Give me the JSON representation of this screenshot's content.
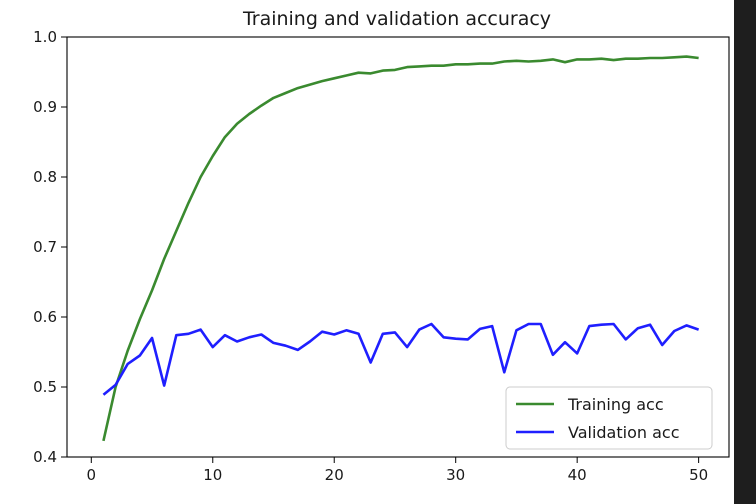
{
  "chart_data": {
    "type": "line",
    "title": "Training and validation accuracy",
    "xlabel": "",
    "ylabel": "",
    "xlim": [
      -2,
      52.5
    ],
    "ylim": [
      0.4,
      1.0
    ],
    "xticks": [
      0,
      10,
      20,
      30,
      40,
      50
    ],
    "yticks": [
      0.4,
      0.5,
      0.6,
      0.7,
      0.8,
      0.9,
      1.0
    ],
    "grid": false,
    "legend_position": "bottom-right",
    "x": [
      1,
      2,
      3,
      4,
      5,
      6,
      7,
      8,
      9,
      10,
      11,
      12,
      13,
      14,
      15,
      16,
      17,
      18,
      19,
      20,
      21,
      22,
      23,
      24,
      25,
      26,
      27,
      28,
      29,
      30,
      31,
      32,
      33,
      34,
      35,
      36,
      37,
      38,
      39,
      40,
      41,
      42,
      43,
      44,
      45,
      46,
      47,
      48,
      49,
      50
    ],
    "series": [
      {
        "name": "Training acc",
        "color": "#3a8a2f",
        "values": [
          0.423,
          0.5,
          0.552,
          0.597,
          0.638,
          0.683,
          0.723,
          0.763,
          0.8,
          0.83,
          0.857,
          0.876,
          0.89,
          0.902,
          0.913,
          0.92,
          0.927,
          0.932,
          0.937,
          0.941,
          0.945,
          0.949,
          0.948,
          0.952,
          0.953,
          0.957,
          0.958,
          0.959,
          0.959,
          0.961,
          0.961,
          0.962,
          0.962,
          0.965,
          0.966,
          0.965,
          0.966,
          0.968,
          0.964,
          0.968,
          0.968,
          0.969,
          0.967,
          0.969,
          0.969,
          0.97,
          0.97,
          0.971,
          0.972,
          0.97
        ]
      },
      {
        "name": "Validation acc",
        "color": "#1f1fff",
        "values": [
          0.489,
          0.503,
          0.533,
          0.545,
          0.57,
          0.502,
          0.574,
          0.576,
          0.582,
          0.557,
          0.574,
          0.565,
          0.571,
          0.575,
          0.563,
          0.559,
          0.553,
          0.565,
          0.579,
          0.575,
          0.581,
          0.576,
          0.535,
          0.576,
          0.578,
          0.557,
          0.582,
          0.59,
          0.571,
          0.569,
          0.568,
          0.583,
          0.587,
          0.521,
          0.581,
          0.59,
          0.59,
          0.546,
          0.564,
          0.548,
          0.587,
          0.589,
          0.59,
          0.568,
          0.584,
          0.589,
          0.56,
          0.58,
          0.588,
          0.582
        ]
      }
    ]
  }
}
